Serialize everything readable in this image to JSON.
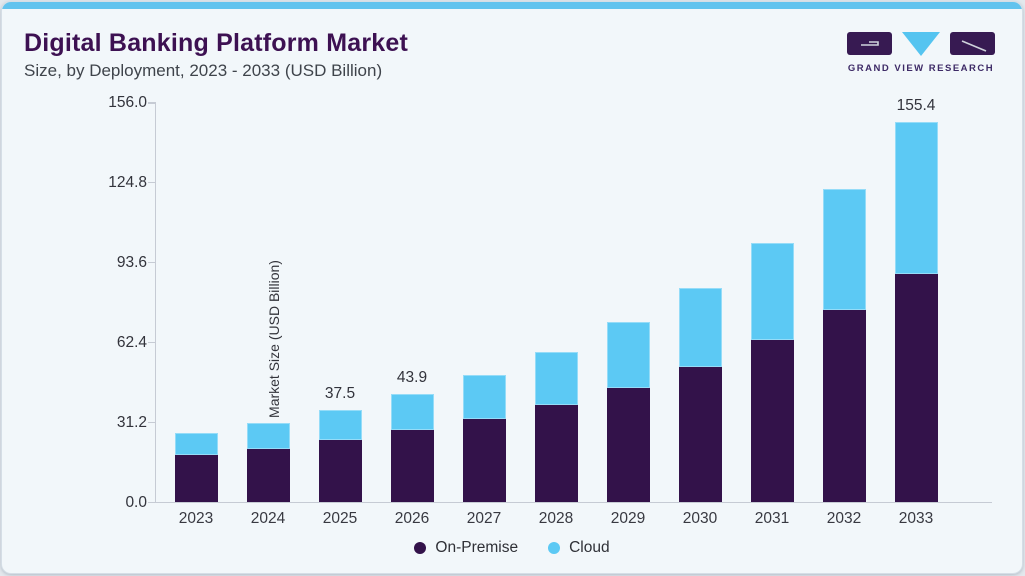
{
  "header": {
    "title": "Digital Banking Platform Market",
    "subtitle": "Size, by Deployment, 2023 - 2033 (USD Billion)"
  },
  "logo": {
    "text": "GRAND VIEW RESEARCH",
    "block_color": "#371a52",
    "triangle_color": "#55c4f0"
  },
  "chart_data": {
    "type": "bar",
    "stacked": true,
    "title": "Digital Banking Platform Market",
    "subtitle": "Size, by Deployment, 2023 - 2033 (USD Billion)",
    "categories": [
      "2023",
      "2024",
      "2025",
      "2026",
      "2027",
      "2028",
      "2029",
      "2030",
      "2031",
      "2032",
      "2033"
    ],
    "series": [
      {
        "name": "On-Premise",
        "color": "#33124a",
        "values": [
          19.1,
          21.8,
          25.2,
          29.3,
          33.8,
          39.8,
          46.6,
          55.2,
          66.1,
          78.4,
          93.4
        ]
      },
      {
        "name": "Cloud",
        "color": "#5cc9f4",
        "values": [
          8.9,
          10.5,
          12.3,
          14.6,
          18.0,
          21.6,
          26.8,
          32.5,
          39.6,
          49.5,
          62.0
        ]
      }
    ],
    "totals": [
      28.0,
      32.3,
      37.5,
      43.9,
      51.8,
      61.4,
      73.4,
      87.7,
      105.7,
      127.9,
      155.4
    ],
    "bar_labels": [
      "",
      "",
      "37.5",
      "43.9",
      "",
      "",
      "",
      "",
      "",
      "",
      "155.4"
    ],
    "xlabel": "",
    "ylabel": "Market Size (USD Billion)",
    "yticks": [
      "0.0",
      "31.2",
      "62.4",
      "93.6",
      "124.8",
      "156.0"
    ],
    "ylim": [
      0,
      156
    ],
    "grid": false,
    "legend_position": "bottom"
  },
  "legend": {
    "items": [
      {
        "label": "On-Premise",
        "color": "#33124a"
      },
      {
        "label": "Cloud",
        "color": "#5cc9f4"
      }
    ]
  }
}
